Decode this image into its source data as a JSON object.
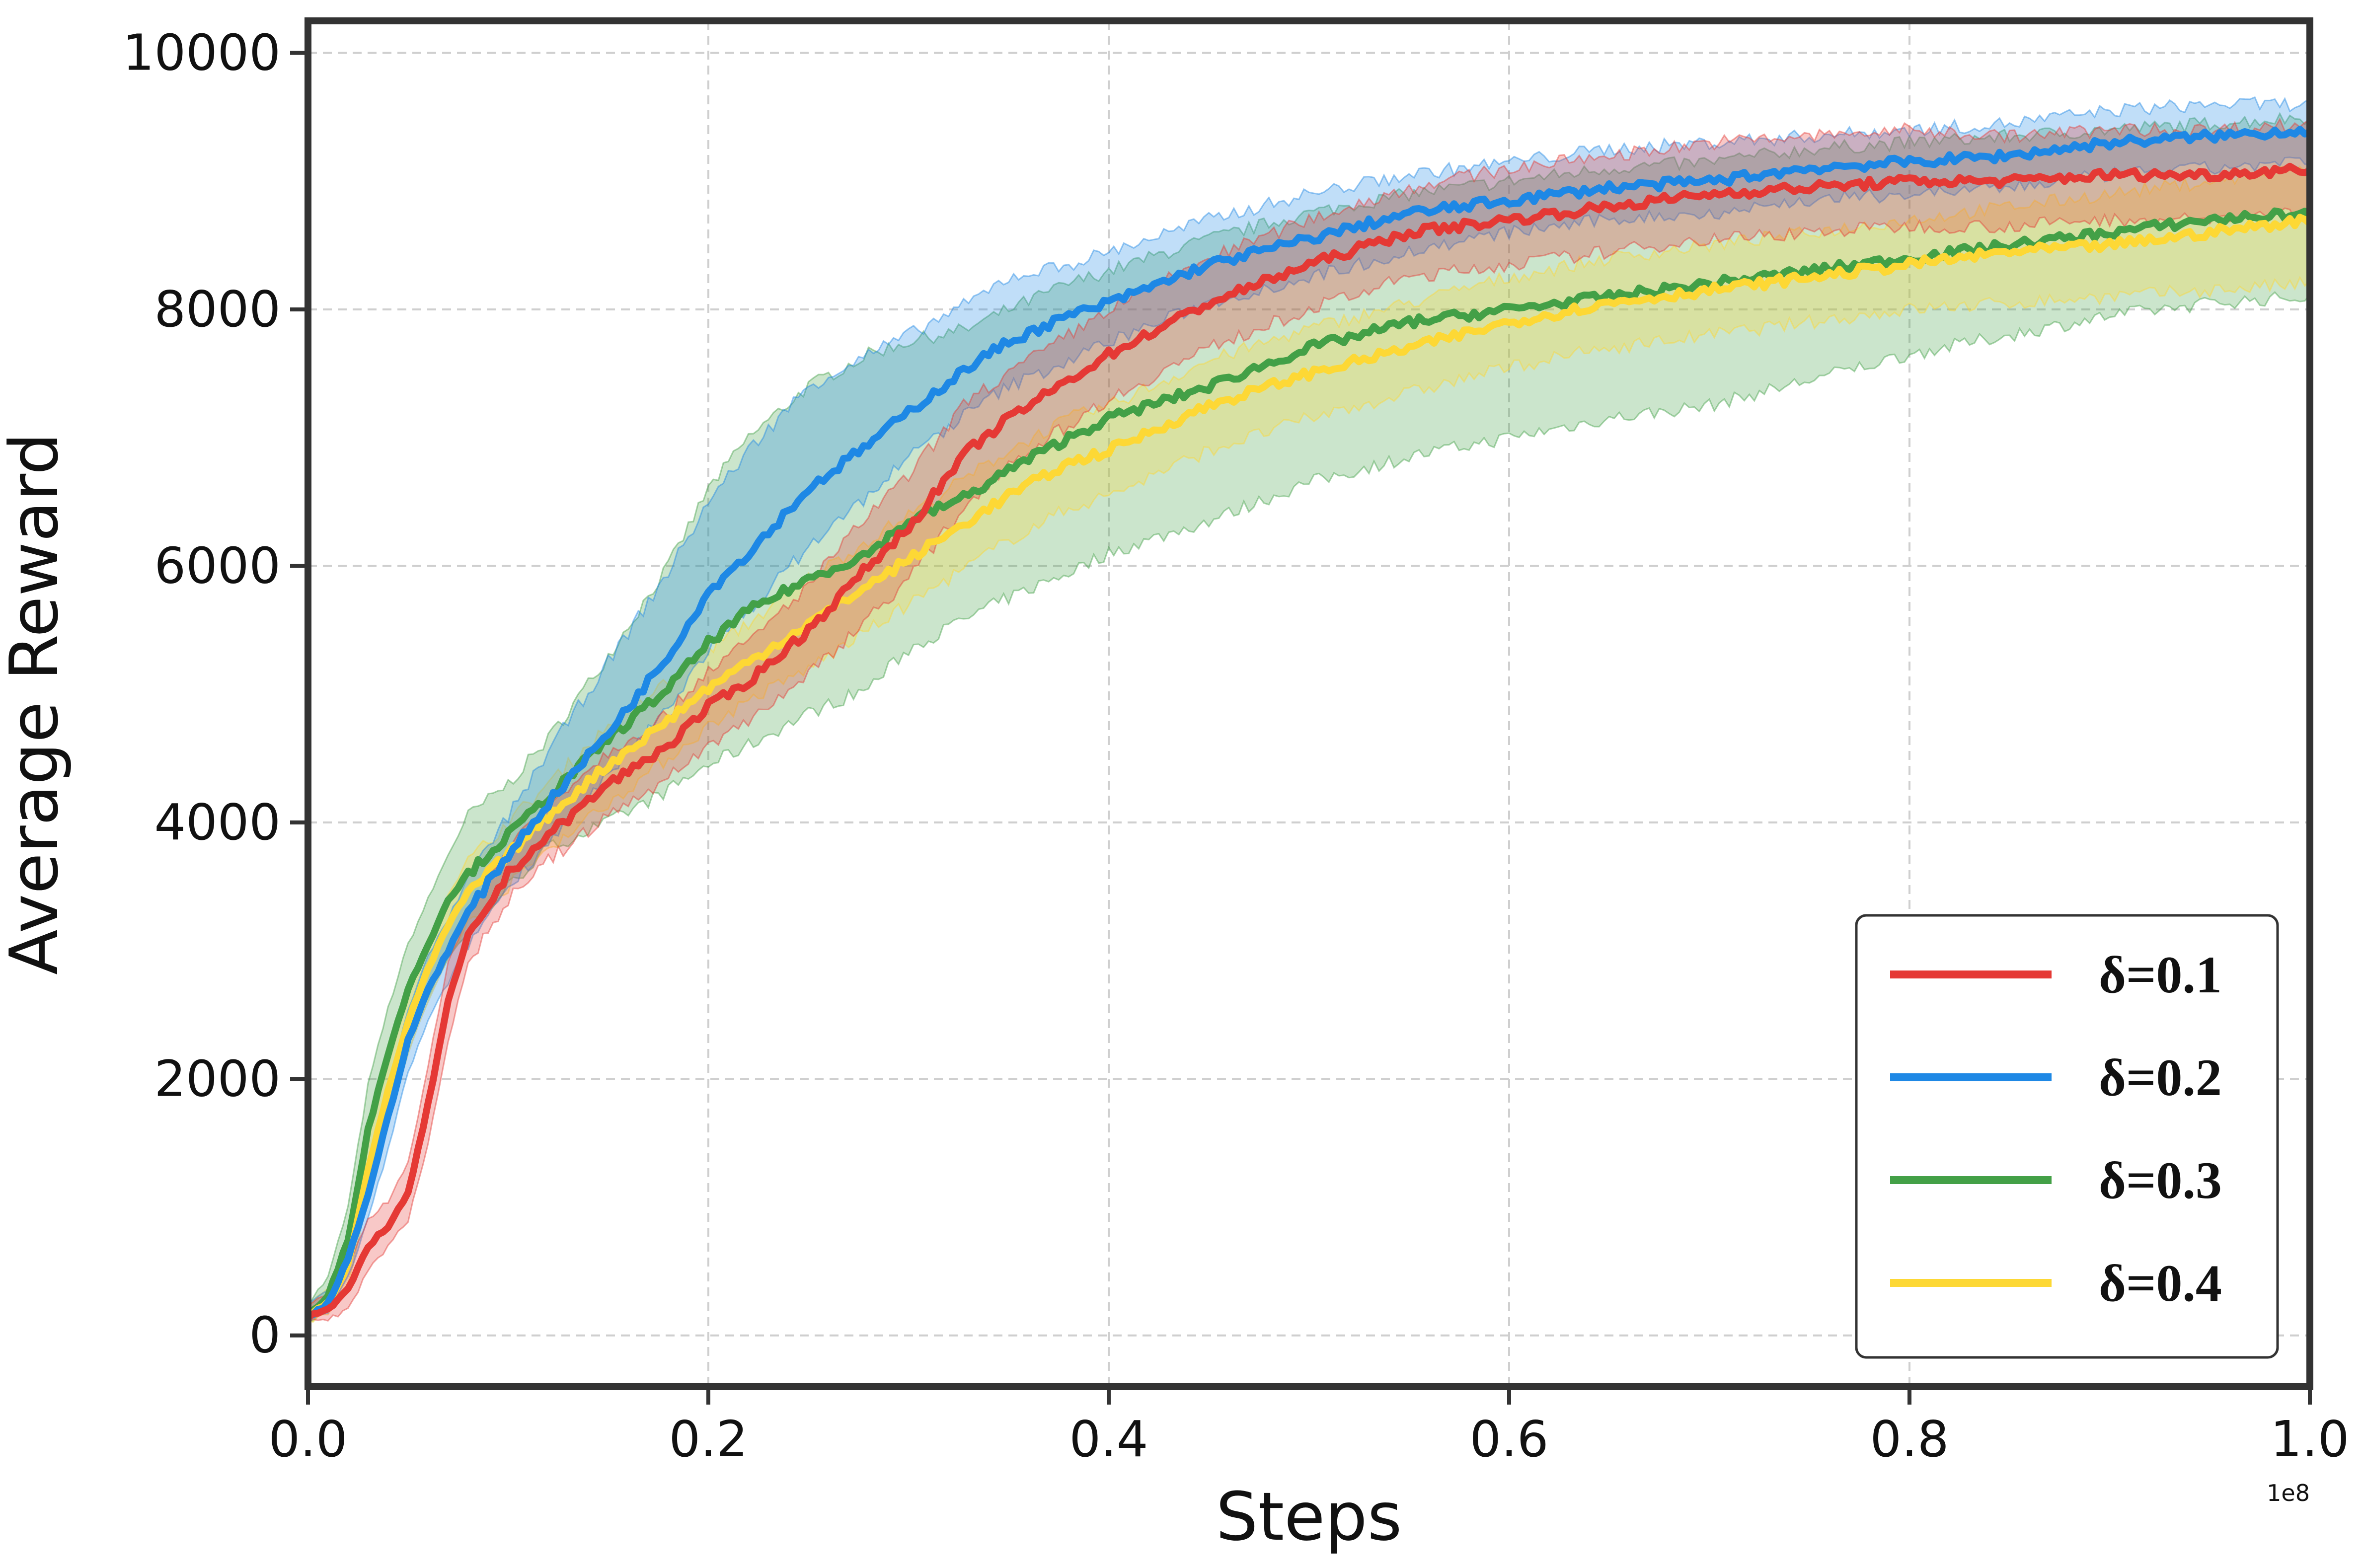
{
  "chart_data": {
    "type": "line",
    "title": "",
    "xlabel": "Steps",
    "ylabel": "Average Reward",
    "x_offset_label": "1e8",
    "xlim": [
      0.0,
      1.0
    ],
    "ylim": [
      -400,
      10250
    ],
    "x_ticks": [
      0.0,
      0.2,
      0.4,
      0.6,
      0.8,
      1.0
    ],
    "x_tick_labels": [
      "0.0",
      "0.2",
      "0.4",
      "0.6",
      "0.8",
      "1.0"
    ],
    "y_ticks": [
      0,
      2000,
      4000,
      6000,
      8000,
      10000
    ],
    "y_tick_labels": [
      "0",
      "2000",
      "4000",
      "6000",
      "8000",
      "10000"
    ],
    "grid": true,
    "legend_position": "lower-right",
    "x": [
      0.0,
      0.01,
      0.02,
      0.03,
      0.04,
      0.05,
      0.06,
      0.07,
      0.08,
      0.1,
      0.12,
      0.15,
      0.18,
      0.2,
      0.22,
      0.25,
      0.28,
      0.3,
      0.33,
      0.35,
      0.38,
      0.4,
      0.45,
      0.5,
      0.55,
      0.6,
      0.65,
      0.7,
      0.75,
      0.8,
      0.85,
      0.9,
      0.95,
      1.0
    ],
    "series": [
      {
        "name": "δ=0.1",
        "color": "#e53935",
        "values": [
          150,
          200,
          350,
          700,
          850,
          1100,
          1800,
          2600,
          3100,
          3600,
          3900,
          4300,
          4600,
          4900,
          5100,
          5500,
          6000,
          6300,
          6900,
          7150,
          7450,
          7650,
          8050,
          8350,
          8600,
          8700,
          8800,
          8900,
          8950,
          9000,
          9000,
          9050,
          9050,
          9100
        ],
        "band_lower": [
          100,
          130,
          200,
          500,
          700,
          900,
          1500,
          2300,
          2900,
          3400,
          3700,
          4050,
          4350,
          4600,
          4800,
          5150,
          5600,
          5900,
          6500,
          6800,
          7100,
          7300,
          7700,
          8000,
          8250,
          8350,
          8450,
          8550,
          8600,
          8650,
          8650,
          8700,
          8700,
          8750
        ],
        "band_upper": [
          250,
          300,
          550,
          900,
          1050,
          1350,
          2100,
          2900,
          3300,
          3800,
          4150,
          4550,
          4850,
          5200,
          5400,
          5850,
          6400,
          6700,
          7300,
          7500,
          7800,
          8000,
          8400,
          8700,
          8950,
          9100,
          9200,
          9300,
          9350,
          9400,
          9350,
          9400,
          9400,
          9450
        ]
      },
      {
        "name": "δ=0.2",
        "color": "#1e88e5",
        "values": [
          150,
          250,
          600,
          1100,
          1700,
          2300,
          2700,
          3000,
          3300,
          3750,
          4150,
          4700,
          5300,
          5800,
          6100,
          6600,
          6950,
          7200,
          7550,
          7750,
          7950,
          8050,
          8350,
          8550,
          8750,
          8850,
          8950,
          9000,
          9100,
          9150,
          9200,
          9300,
          9350,
          9400
        ],
        "band_lower": [
          100,
          180,
          450,
          900,
          1450,
          2050,
          2450,
          2750,
          3050,
          3500,
          3850,
          4350,
          4900,
          5350,
          5650,
          6150,
          6550,
          6850,
          7200,
          7400,
          7600,
          7750,
          8050,
          8250,
          8450,
          8600,
          8700,
          8750,
          8850,
          8900,
          8950,
          9050,
          9100,
          9150
        ],
        "band_upper": [
          250,
          350,
          800,
          1350,
          1950,
          2550,
          2950,
          3250,
          3550,
          4050,
          4550,
          5250,
          5950,
          6500,
          6900,
          7400,
          7650,
          7800,
          8050,
          8250,
          8350,
          8450,
          8700,
          8900,
          9050,
          9150,
          9250,
          9300,
          9350,
          9400,
          9450,
          9550,
          9600,
          9600
        ]
      },
      {
        "name": "δ=0.3",
        "color": "#43a047",
        "values": [
          150,
          300,
          750,
          1600,
          2200,
          2700,
          3050,
          3400,
          3600,
          3900,
          4200,
          4650,
          5050,
          5400,
          5650,
          5900,
          6100,
          6350,
          6550,
          6750,
          7000,
          7150,
          7400,
          7700,
          7900,
          8000,
          8100,
          8200,
          8300,
          8400,
          8500,
          8600,
          8700,
          8750
        ],
        "band_lower": [
          100,
          200,
          550,
          1300,
          1900,
          2350,
          2650,
          2950,
          3150,
          3500,
          3800,
          4000,
          4250,
          4450,
          4600,
          4850,
          5050,
          5350,
          5600,
          5750,
          5950,
          6100,
          6350,
          6650,
          6850,
          7000,
          7150,
          7250,
          7450,
          7650,
          7800,
          7950,
          8050,
          8100
        ],
        "band_upper": [
          250,
          450,
          1000,
          1950,
          2550,
          3050,
          3400,
          3750,
          4050,
          4300,
          4650,
          5300,
          6000,
          6600,
          7000,
          7400,
          7650,
          7750,
          7850,
          8000,
          8200,
          8300,
          8550,
          8750,
          8900,
          9000,
          9100,
          9150,
          9250,
          9300,
          9350,
          9400,
          9450,
          9500
        ]
      },
      {
        "name": "δ=0.4",
        "color": "#fdd835",
        "values": [
          150,
          250,
          550,
          1300,
          1900,
          2450,
          2850,
          3200,
          3450,
          3750,
          4050,
          4450,
          4800,
          5050,
          5250,
          5550,
          5850,
          6050,
          6350,
          6550,
          6800,
          6900,
          7250,
          7500,
          7700,
          7900,
          8050,
          8150,
          8250,
          8350,
          8450,
          8500,
          8600,
          8700
        ],
        "band_lower": [
          100,
          180,
          400,
          1050,
          1650,
          2200,
          2600,
          2950,
          3200,
          3500,
          3800,
          4150,
          4500,
          4750,
          4950,
          5200,
          5500,
          5700,
          6000,
          6200,
          6450,
          6550,
          6900,
          7150,
          7350,
          7550,
          7700,
          7800,
          7900,
          8000,
          8050,
          8100,
          8150,
          8200
        ],
        "band_upper": [
          250,
          350,
          750,
          1550,
          2150,
          2700,
          3100,
          3450,
          3700,
          4000,
          4300,
          4750,
          5100,
          5350,
          5550,
          5900,
          6200,
          6400,
          6700,
          6900,
          7150,
          7250,
          7600,
          7850,
          8050,
          8250,
          8400,
          8500,
          8600,
          8700,
          8800,
          8900,
          9000,
          9100
        ]
      }
    ]
  }
}
